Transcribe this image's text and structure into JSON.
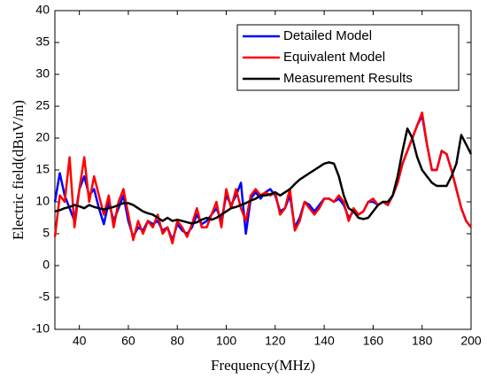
{
  "chart_data": {
    "type": "line",
    "xlabel": "Frequency(MHz)",
    "ylabel": "Electric field(dBuV/m)",
    "x": [
      30,
      32,
      34,
      36,
      38,
      40,
      42,
      44,
      46,
      48,
      50,
      52,
      54,
      56,
      58,
      60,
      62,
      64,
      66,
      68,
      70,
      72,
      74,
      76,
      78,
      80,
      82,
      84,
      86,
      88,
      90,
      92,
      94,
      96,
      98,
      100,
      102,
      104,
      106,
      108,
      110,
      112,
      114,
      116,
      118,
      120,
      122,
      124,
      126,
      128,
      130,
      132,
      134,
      136,
      138,
      140,
      142,
      144,
      146,
      148,
      150,
      152,
      154,
      156,
      158,
      160,
      162,
      164,
      166,
      168,
      170,
      172,
      174,
      176,
      178,
      180,
      182,
      184,
      186,
      188,
      190,
      192,
      194,
      196,
      198,
      200
    ],
    "series": [
      {
        "name": "Detailed Model",
        "color": "#0000ff",
        "values": [
          10,
          14.5,
          11,
          9,
          7,
          12,
          14,
          11,
          12,
          9,
          6.5,
          10,
          7,
          9,
          11,
          7,
          4.5,
          6,
          5.5,
          7,
          6.5,
          7,
          5.5,
          6,
          4,
          6.5,
          5.5,
          5,
          6,
          8,
          6.5,
          7,
          8,
          9,
          7,
          11,
          9.5,
          11,
          13,
          5,
          10.5,
          11.5,
          10.5,
          11.5,
          12,
          11,
          8.5,
          9,
          11,
          6,
          7.5,
          10,
          9.5,
          8.5,
          9.5,
          10.5,
          10.5,
          10,
          10.5,
          9.5,
          7.5,
          8.5,
          8,
          8.5,
          10,
          10,
          9.5,
          10,
          9.5,
          11,
          13,
          16,
          18,
          20,
          22,
          23.5,
          19,
          15,
          15,
          18,
          17.5,
          15,
          12,
          9,
          7,
          6
        ]
      },
      {
        "name": "Equivalent Model",
        "color": "#ff0000",
        "values": [
          4.5,
          11,
          10,
          17,
          6,
          12,
          17,
          10,
          14,
          11,
          8,
          11,
          6,
          10,
          12,
          8,
          4,
          7,
          5,
          7,
          6,
          8,
          5,
          6,
          3.5,
          7,
          6,
          4.5,
          6.5,
          9,
          6,
          6,
          8,
          10,
          6,
          12,
          9,
          12,
          9,
          7,
          11,
          12,
          11,
          11.5,
          11,
          11.5,
          8,
          9,
          12,
          5.5,
          7,
          10,
          9,
          8,
          9,
          10.5,
          10.5,
          10,
          11,
          10,
          7,
          9,
          8,
          8.5,
          10,
          10.5,
          9.5,
          10,
          9.5,
          11,
          13,
          16,
          18,
          20,
          22,
          24,
          19,
          15,
          15,
          18,
          17.5,
          15,
          12,
          9,
          7,
          6
        ]
      },
      {
        "name": "Measurement Results",
        "color": "#000000",
        "values": [
          8.5,
          8.7,
          9,
          9.2,
          9.5,
          9.3,
          9,
          9.5,
          9.2,
          9,
          8.8,
          9,
          9.2,
          9.5,
          9.8,
          9.8,
          9.5,
          9,
          8.5,
          8.2,
          8,
          7.5,
          7,
          7.5,
          7,
          7.2,
          7,
          6.8,
          6.6,
          6.8,
          7.2,
          7.5,
          7.2,
          7.5,
          8,
          8.5,
          9,
          9.2,
          9.5,
          9.8,
          10.2,
          10.5,
          11,
          11,
          11.2,
          11.5,
          11,
          11.5,
          12,
          12.8,
          13.5,
          14,
          14.5,
          15,
          15.5,
          16,
          16.2,
          16,
          14,
          11,
          9,
          8.5,
          7.5,
          7.3,
          7.5,
          8.5,
          9.5,
          10,
          10,
          11,
          14,
          18,
          21.5,
          20,
          17,
          15,
          14,
          13,
          12.5,
          12.5,
          12.5,
          14,
          16,
          20.5,
          19,
          17.5
        ]
      }
    ],
    "xlim": [
      30,
      200
    ],
    "xticks": [
      40,
      60,
      80,
      100,
      120,
      140,
      160,
      180,
      200
    ],
    "ylim": [
      -10,
      40
    ],
    "yticks": [
      -10,
      -5,
      0,
      5,
      10,
      15,
      20,
      25,
      30,
      35,
      40
    ],
    "grid": false,
    "legend": "upper right"
  }
}
